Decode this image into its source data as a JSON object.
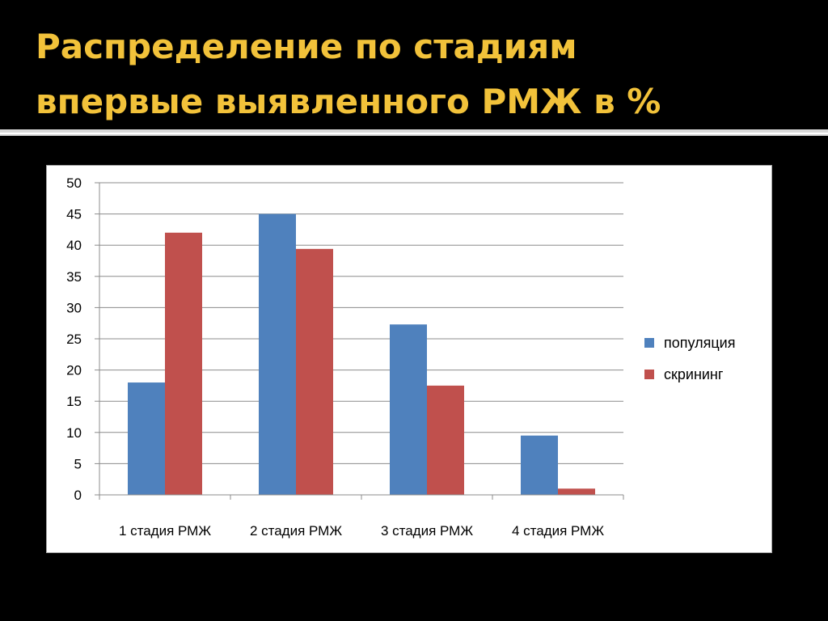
{
  "slide": {
    "title_line1": "Распределение по стадиям",
    "title_line2": "впервые выявленного РМЖ в %"
  },
  "colors": {
    "title": "#F2C23A",
    "background": "#000000",
    "series_1": "#4F81BD",
    "series_2": "#C0504D"
  },
  "chart_data": {
    "type": "bar",
    "categories": [
      "1 стадия РМЖ",
      "2 стадия РМЖ",
      "3 стадия РМЖ",
      "4 стадия РМЖ"
    ],
    "series": [
      {
        "name": "популяция",
        "values": [
          18,
          45,
          27.3,
          9.5
        ]
      },
      {
        "name": "скрининг",
        "values": [
          42,
          39.4,
          17.5,
          1
        ]
      }
    ],
    "ylim": [
      0,
      50
    ],
    "yticks": [
      0,
      5,
      10,
      15,
      20,
      25,
      30,
      35,
      40,
      45,
      50
    ],
    "grid": true,
    "legend": "right"
  }
}
